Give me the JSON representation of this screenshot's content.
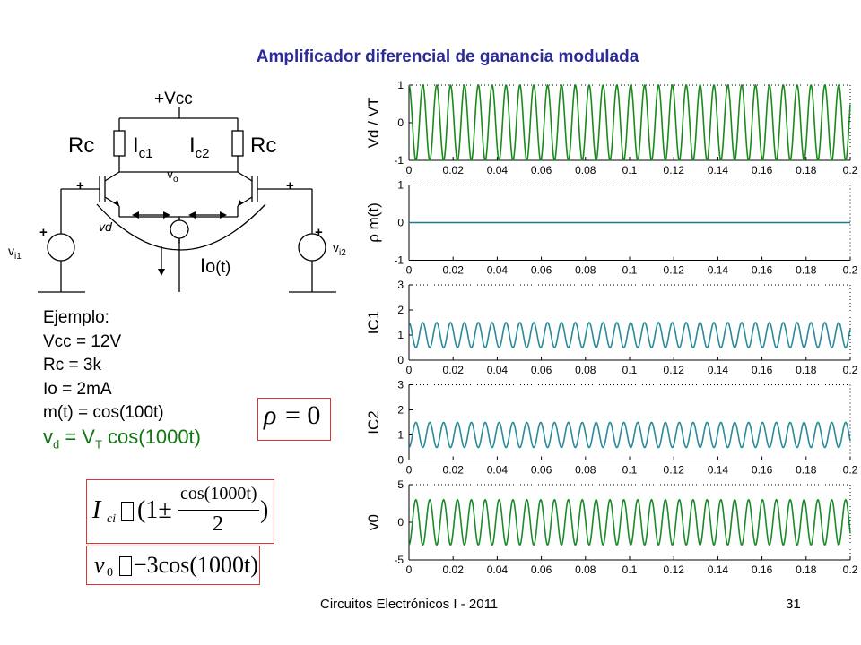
{
  "title": "Amplificador diferencial de ganancia modulada",
  "circuit": {
    "vcc": "+Vcc",
    "rc_left": "Rc",
    "rc_right": "Rc",
    "ic1": "I",
    "ic1_sub": "c1",
    "ic2": "I",
    "ic2_sub": "c2",
    "vo": "v",
    "vo_sub": "o",
    "plus": "+",
    "vd": "vd",
    "vi1": "v",
    "vi1_sub": "i1",
    "vi2": "v",
    "vi2_sub": "i2",
    "io": "I",
    "io_sub": "o",
    "io_arg": "(t)"
  },
  "example": {
    "heading": "Ejemplo:",
    "vcc": "Vcc = 12V",
    "rc": "Rc = 3k",
    "io": "Io = 2mA",
    "mt": "m(t) = cos(100t)",
    "vd_v": "v",
    "vd_sub": "d",
    "vd_eq": " = V",
    "vd_vt_sub": "T",
    "vd_rest": " cos(1000t)"
  },
  "formulas": {
    "rho": "ρ = 0",
    "rho_sym": "ρ",
    "rho_eq": "= 0",
    "ic_lhs": "I",
    "ic_sub": "ci",
    "ic_box": "",
    "ic_rest": "(1±",
    "ic_num": "cos(1000t)",
    "ic_den": "2",
    "ic_close": ")",
    "v0_lhs": "v",
    "v0_sub": "0",
    "v0_box": "",
    "v0_rest": "−3cos(1000t)"
  },
  "footer": {
    "text": "Circuitos Electrónicos I - 2011",
    "page": "31"
  },
  "colors": {
    "title": "#2b2b99",
    "vd_signal": "#1a8a1a",
    "m_signal": "#1f7a8c",
    "ic_signal": "#2a8a9a",
    "v0_signal": "#1a8a2a",
    "box_border": "#dd3333"
  },
  "chart_data": [
    {
      "type": "line",
      "ylabel": "Vd / VT",
      "x_range": [
        0,
        0.2
      ],
      "ylim": [
        -1,
        1
      ],
      "x_ticks": [
        "0",
        "0.02",
        "0.04",
        "0.06",
        "0.08",
        "0.1",
        "0.12",
        "0.14",
        "0.16",
        "0.18",
        "0.2"
      ],
      "y_ticks": [
        "1",
        "0",
        "-1"
      ],
      "series": [
        {
          "function": "cos(1000t)",
          "amplitude": 1,
          "offset": 0,
          "freq_rad_s": 1000,
          "color": "#1a8a1a"
        }
      ]
    },
    {
      "type": "line",
      "ylabel": "ρ m(t)",
      "x_range": [
        0,
        0.2
      ],
      "ylim": [
        -1,
        1
      ],
      "x_ticks": [
        "0",
        "0.02",
        "0.04",
        "0.06",
        "0.08",
        "0.1",
        "0.12",
        "0.14",
        "0.16",
        "0.18",
        "0.2"
      ],
      "y_ticks": [
        "1",
        "0",
        "-1"
      ],
      "series": [
        {
          "function": "0",
          "amplitude": 0,
          "offset": 0,
          "freq_rad_s": 0,
          "color": "#1f7a8c"
        }
      ]
    },
    {
      "type": "line",
      "ylabel": "IC1",
      "x_range": [
        0,
        0.2
      ],
      "ylim": [
        0,
        3
      ],
      "x_ticks": [
        "0",
        "0.02",
        "0.04",
        "0.06",
        "0.08",
        "0.1",
        "0.12",
        "0.14",
        "0.16",
        "0.18",
        "0.2"
      ],
      "y_ticks": [
        "3",
        "2",
        "1",
        "0"
      ],
      "series": [
        {
          "function": "1 + 0.5cos(1000t)",
          "amplitude": 0.5,
          "offset": 1,
          "freq_rad_s": 1000,
          "color": "#2a8a9a"
        }
      ]
    },
    {
      "type": "line",
      "ylabel": "IC2",
      "x_range": [
        0,
        0.2
      ],
      "ylim": [
        0,
        3
      ],
      "x_ticks": [
        "0",
        "0.02",
        "0.04",
        "0.06",
        "0.08",
        "0.1",
        "0.12",
        "0.14",
        "0.16",
        "0.18",
        "0.2"
      ],
      "y_ticks": [
        "3",
        "2",
        "1",
        "0"
      ],
      "series": [
        {
          "function": "1 - 0.5cos(1000t)",
          "amplitude": -0.5,
          "offset": 1,
          "freq_rad_s": 1000,
          "color": "#2a8a9a"
        }
      ]
    },
    {
      "type": "line",
      "ylabel": "v0",
      "x_range": [
        0,
        0.2
      ],
      "ylim": [
        -5,
        5
      ],
      "x_ticks": [
        "0",
        "0.02",
        "0.04",
        "0.06",
        "0.08",
        "0.1",
        "0.12",
        "0.14",
        "0.16",
        "0.18",
        "0.2"
      ],
      "y_ticks": [
        "5",
        "0",
        "-5"
      ],
      "series": [
        {
          "function": "-3cos(1000t)",
          "amplitude": -3,
          "offset": 0,
          "freq_rad_s": 1000,
          "color": "#1a8a2a"
        }
      ]
    }
  ]
}
